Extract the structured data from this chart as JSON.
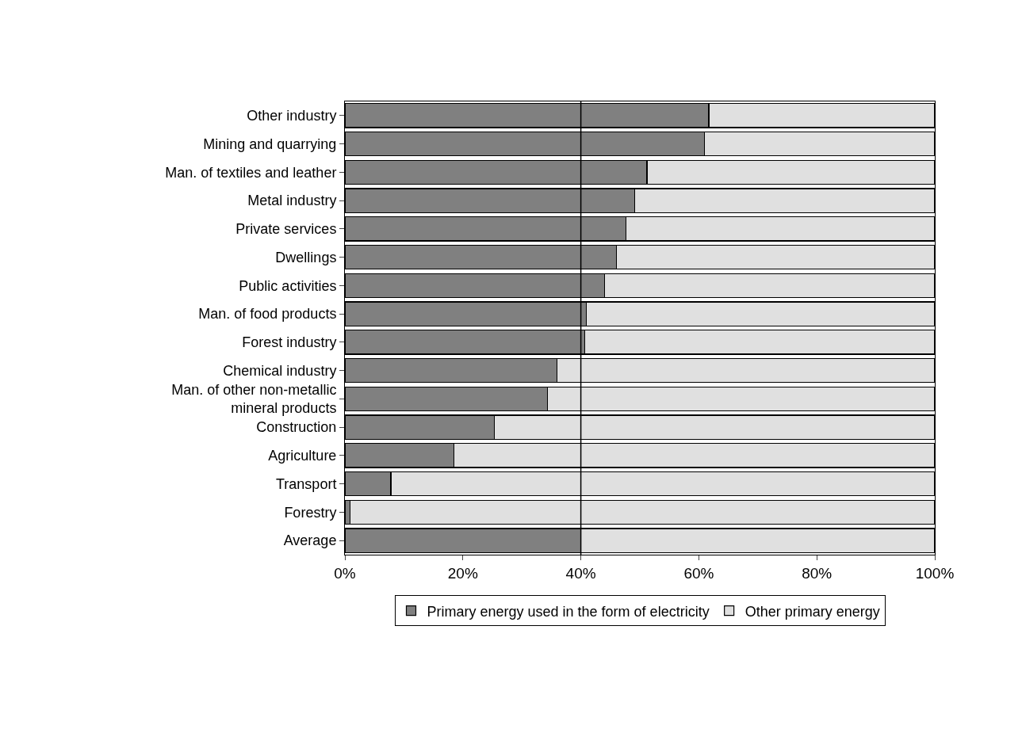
{
  "chart_data": {
    "type": "bar",
    "orientation": "horizontal",
    "stacked": true,
    "categories": [
      "Other industry",
      "Mining and quarrying",
      "Man. of textiles and leather",
      "Metal industry",
      "Private services",
      "Dwellings",
      "Public activities",
      "Man. of food products",
      "Forest industry",
      "Chemical industry",
      "Man. of other non-metallic mineral products",
      "Construction",
      "Agriculture",
      "Transport",
      "Forestry",
      "Average"
    ],
    "series": [
      {
        "name": "Primary energy used in the form of electricity",
        "color": "#808080",
        "values": [
          61.7,
          61.0,
          51.2,
          49.1,
          47.6,
          46.0,
          44.0,
          40.9,
          40.7,
          36.0,
          34.3,
          25.3,
          18.5,
          7.8,
          0.9,
          40.0
        ]
      },
      {
        "name": "Other primary energy",
        "color": "#e0e0e0",
        "values": [
          38.3,
          39.0,
          48.8,
          50.9,
          52.4,
          54.0,
          56.0,
          59.1,
          59.3,
          64.0,
          65.7,
          74.7,
          81.5,
          92.2,
          99.1,
          60.0
        ]
      }
    ],
    "xlim": [
      0,
      100
    ],
    "xticks": [
      {
        "value": 0,
        "label": "0%"
      },
      {
        "value": 20,
        "label": "20%"
      },
      {
        "value": 40,
        "label": "40%"
      },
      {
        "value": 60,
        "label": "60%"
      },
      {
        "value": 80,
        "label": "80%"
      },
      {
        "value": 100,
        "label": "100%"
      }
    ],
    "ref_lines": [
      {
        "axis": "x",
        "value": 40,
        "color": "#000000"
      }
    ],
    "grid": false,
    "legend": "bottom"
  }
}
